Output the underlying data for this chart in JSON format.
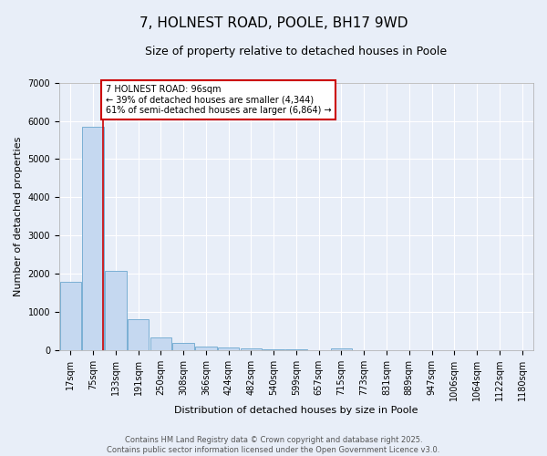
{
  "title": "7, HOLNEST ROAD, POOLE, BH17 9WD",
  "subtitle": "Size of property relative to detached houses in Poole",
  "xlabel": "Distribution of detached houses by size in Poole",
  "ylabel": "Number of detached properties",
  "categories": [
    "17sqm",
    "75sqm",
    "133sqm",
    "191sqm",
    "250sqm",
    "308sqm",
    "366sqm",
    "424sqm",
    "482sqm",
    "540sqm",
    "599sqm",
    "657sqm",
    "715sqm",
    "773sqm",
    "831sqm",
    "889sqm",
    "947sqm",
    "1006sqm",
    "1064sqm",
    "1122sqm",
    "1180sqm"
  ],
  "values": [
    1800,
    5850,
    2080,
    820,
    340,
    190,
    110,
    75,
    60,
    35,
    25,
    15,
    55,
    0,
    0,
    0,
    0,
    0,
    0,
    0,
    0
  ],
  "bar_color": "#c5d8f0",
  "bar_edge_color": "#7aafd4",
  "red_line_x": 1.45,
  "annotation_text": "7 HOLNEST ROAD: 96sqm\n← 39% of detached houses are smaller (4,344)\n61% of semi-detached houses are larger (6,864) →",
  "annotation_box_color": "#ffffff",
  "annotation_box_edge_color": "#cc0000",
  "ylim": [
    0,
    7000
  ],
  "yticks": [
    0,
    1000,
    2000,
    3000,
    4000,
    5000,
    6000,
    7000
  ],
  "footer": "Contains HM Land Registry data © Crown copyright and database right 2025.\nContains public sector information licensed under the Open Government Licence v3.0.",
  "background_color": "#e8eef8",
  "grid_color": "#ffffff",
  "title_fontsize": 11,
  "subtitle_fontsize": 9,
  "axis_label_fontsize": 8,
  "tick_fontsize": 7,
  "footer_fontsize": 6
}
